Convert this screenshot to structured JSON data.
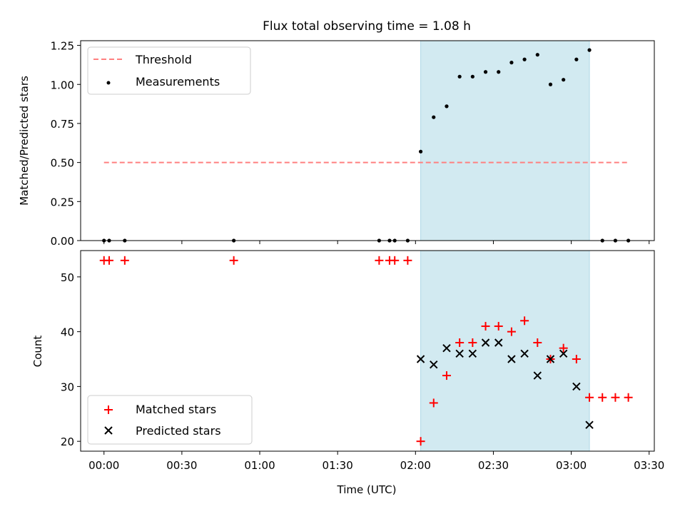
{
  "chart_data": [
    {
      "type": "scatter",
      "title": "Flux total observing time = 1.08 h",
      "xlabel": "",
      "ylabel": "Matched/Predicted stars",
      "ylim": [
        0,
        1.28
      ],
      "yticks": [
        "0.00",
        "0.25",
        "0.50",
        "0.75",
        "1.00",
        "1.25"
      ],
      "shaded_span": [
        "02:02",
        "03:07"
      ],
      "threshold": {
        "name": "Threshold",
        "value": 0.5,
        "x": [
          "00:00",
          "03:22"
        ],
        "color": "#ff8080",
        "style": "dashed"
      },
      "series": [
        {
          "name": "Measurements",
          "marker": "dot",
          "color": "#000000",
          "points": [
            [
              "00:00",
              0
            ],
            [
              "00:02",
              0
            ],
            [
              "00:08",
              0
            ],
            [
              "00:50",
              0
            ],
            [
              "01:46",
              0
            ],
            [
              "01:50",
              0
            ],
            [
              "01:52",
              0
            ],
            [
              "01:57",
              0
            ],
            [
              "02:02",
              0.57
            ],
            [
              "02:07",
              0.79
            ],
            [
              "02:12",
              0.86
            ],
            [
              "02:17",
              1.05
            ],
            [
              "02:22",
              1.05
            ],
            [
              "02:27",
              1.08
            ],
            [
              "02:32",
              1.08
            ],
            [
              "02:37",
              1.14
            ],
            [
              "02:42",
              1.16
            ],
            [
              "02:47",
              1.19
            ],
            [
              "02:52",
              1.0
            ],
            [
              "02:57",
              1.03
            ],
            [
              "03:02",
              1.16
            ],
            [
              "03:07",
              1.22
            ],
            [
              "03:12",
              0
            ],
            [
              "03:17",
              0
            ],
            [
              "03:22",
              0
            ]
          ]
        }
      ],
      "legend": {
        "placement": "upper-left",
        "entries": [
          "Threshold",
          "Measurements"
        ]
      },
      "grid": false
    },
    {
      "type": "scatter",
      "title": "",
      "xlabel": "Time (UTC)",
      "ylabel": "Count",
      "ylim": [
        18.2,
        54.8
      ],
      "yticks": [
        "20",
        "30",
        "40",
        "50"
      ],
      "xticks": [
        "00:00",
        "00:30",
        "01:00",
        "01:30",
        "02:00",
        "02:30",
        "03:00",
        "03:30"
      ],
      "xlim": [
        "-00:09",
        "03:32"
      ],
      "shaded_span": [
        "02:02",
        "03:07"
      ],
      "series": [
        {
          "name": "Matched stars",
          "marker": "plus",
          "color": "#ff0000",
          "points": [
            [
              "00:00",
              53
            ],
            [
              "00:02",
              53
            ],
            [
              "00:08",
              53
            ],
            [
              "00:50",
              53
            ],
            [
              "01:46",
              53
            ],
            [
              "01:50",
              53
            ],
            [
              "01:52",
              53
            ],
            [
              "01:57",
              53
            ],
            [
              "02:02",
              20
            ],
            [
              "02:07",
              27
            ],
            [
              "02:12",
              32
            ],
            [
              "02:17",
              38
            ],
            [
              "02:22",
              38
            ],
            [
              "02:27",
              41
            ],
            [
              "02:32",
              41
            ],
            [
              "02:37",
              40
            ],
            [
              "02:42",
              42
            ],
            [
              "02:47",
              38
            ],
            [
              "02:52",
              35
            ],
            [
              "02:57",
              37
            ],
            [
              "03:02",
              35
            ],
            [
              "03:07",
              28
            ],
            [
              "03:12",
              28
            ],
            [
              "03:17",
              28
            ],
            [
              "03:22",
              28
            ]
          ]
        },
        {
          "name": "Predicted stars",
          "marker": "x",
          "color": "#000000",
          "points": [
            [
              "02:02",
              35
            ],
            [
              "02:07",
              34
            ],
            [
              "02:12",
              37
            ],
            [
              "02:17",
              36
            ],
            [
              "02:22",
              36
            ],
            [
              "02:27",
              38
            ],
            [
              "02:32",
              38
            ],
            [
              "02:37",
              35
            ],
            [
              "02:42",
              36
            ],
            [
              "02:47",
              32
            ],
            [
              "02:52",
              35
            ],
            [
              "02:57",
              36
            ],
            [
              "03:02",
              30
            ],
            [
              "03:07",
              23
            ]
          ]
        }
      ],
      "legend": {
        "placement": "lower-left",
        "entries": [
          "Matched stars",
          "Predicted stars"
        ]
      },
      "grid": false
    }
  ],
  "colors": {
    "span_fill": "#add8e6",
    "threshold": "#ff8080",
    "matched": "#ff0000",
    "predicted": "#000000"
  }
}
